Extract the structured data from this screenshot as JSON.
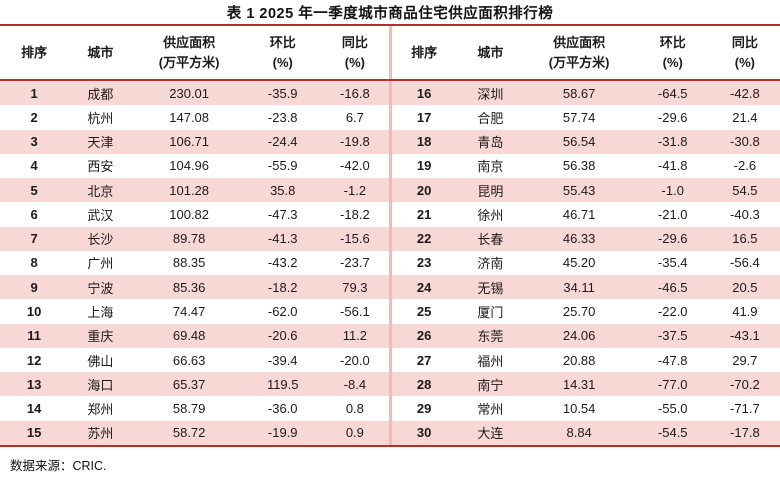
{
  "chart_data": {
    "type": "table",
    "title": "表 1 2025 年一季度城市商品住宅供应面积排行榜",
    "source": "数据来源：CRIC.",
    "columns": {
      "rank": "排序",
      "city": "城市",
      "supply_l1": "供应面积",
      "supply_l2": "(万平方米)",
      "mom_l1": "环比",
      "mom_l2": "(%)",
      "yoy_l1": "同比",
      "yoy_l2": "(%)"
    },
    "left_rows": [
      {
        "rank": "1",
        "city": "成都",
        "supply": "230.01",
        "mom": "-35.9",
        "yoy": "-16.8"
      },
      {
        "rank": "2",
        "city": "杭州",
        "supply": "147.08",
        "mom": "-23.8",
        "yoy": "6.7"
      },
      {
        "rank": "3",
        "city": "天津",
        "supply": "106.71",
        "mom": "-24.4",
        "yoy": "-19.8"
      },
      {
        "rank": "4",
        "city": "西安",
        "supply": "104.96",
        "mom": "-55.9",
        "yoy": "-42.0"
      },
      {
        "rank": "5",
        "city": "北京",
        "supply": "101.28",
        "mom": "35.8",
        "yoy": "-1.2"
      },
      {
        "rank": "6",
        "city": "武汉",
        "supply": "100.82",
        "mom": "-47.3",
        "yoy": "-18.2"
      },
      {
        "rank": "7",
        "city": "长沙",
        "supply": "89.78",
        "mom": "-41.3",
        "yoy": "-15.6"
      },
      {
        "rank": "8",
        "city": "广州",
        "supply": "88.35",
        "mom": "-43.2",
        "yoy": "-23.7"
      },
      {
        "rank": "9",
        "city": "宁波",
        "supply": "85.36",
        "mom": "-18.2",
        "yoy": "79.3"
      },
      {
        "rank": "10",
        "city": "上海",
        "supply": "74.47",
        "mom": "-62.0",
        "yoy": "-56.1"
      },
      {
        "rank": "11",
        "city": "重庆",
        "supply": "69.48",
        "mom": "-20.6",
        "yoy": "11.2"
      },
      {
        "rank": "12",
        "city": "佛山",
        "supply": "66.63",
        "mom": "-39.4",
        "yoy": "-20.0"
      },
      {
        "rank": "13",
        "city": "海口",
        "supply": "65.37",
        "mom": "119.5",
        "yoy": "-8.4"
      },
      {
        "rank": "14",
        "city": "郑州",
        "supply": "58.79",
        "mom": "-36.0",
        "yoy": "0.8"
      },
      {
        "rank": "15",
        "city": "苏州",
        "supply": "58.72",
        "mom": "-19.9",
        "yoy": "0.9"
      }
    ],
    "right_rows": [
      {
        "rank": "16",
        "city": "深圳",
        "supply": "58.67",
        "mom": "-64.5",
        "yoy": "-42.8"
      },
      {
        "rank": "17",
        "city": "合肥",
        "supply": "57.74",
        "mom": "-29.6",
        "yoy": "21.4"
      },
      {
        "rank": "18",
        "city": "青岛",
        "supply": "56.54",
        "mom": "-31.8",
        "yoy": "-30.8"
      },
      {
        "rank": "19",
        "city": "南京",
        "supply": "56.38",
        "mom": "-41.8",
        "yoy": "-2.6"
      },
      {
        "rank": "20",
        "city": "昆明",
        "supply": "55.43",
        "mom": "-1.0",
        "yoy": "54.5"
      },
      {
        "rank": "21",
        "city": "徐州",
        "supply": "46.71",
        "mom": "-21.0",
        "yoy": "-40.3"
      },
      {
        "rank": "22",
        "city": "长春",
        "supply": "46.33",
        "mom": "-29.6",
        "yoy": "16.5"
      },
      {
        "rank": "23",
        "city": "济南",
        "supply": "45.20",
        "mom": "-35.4",
        "yoy": "-56.4"
      },
      {
        "rank": "24",
        "city": "无锡",
        "supply": "34.11",
        "mom": "-46.5",
        "yoy": "20.5"
      },
      {
        "rank": "25",
        "city": "厦门",
        "supply": "25.70",
        "mom": "-22.0",
        "yoy": "41.9"
      },
      {
        "rank": "26",
        "city": "东莞",
        "supply": "24.06",
        "mom": "-37.5",
        "yoy": "-43.1"
      },
      {
        "rank": "27",
        "city": "福州",
        "supply": "20.88",
        "mom": "-47.8",
        "yoy": "29.7"
      },
      {
        "rank": "28",
        "city": "南宁",
        "supply": "14.31",
        "mom": "-77.0",
        "yoy": "-70.2"
      },
      {
        "rank": "29",
        "city": "常州",
        "supply": "10.54",
        "mom": "-55.0",
        "yoy": "-71.7"
      },
      {
        "rank": "30",
        "city": "大连",
        "supply": "8.84",
        "mom": "-54.5",
        "yoy": "-17.8"
      }
    ]
  },
  "colors": {
    "line_red": "#b8302b",
    "stripe_pink": "#f8d8d5",
    "divider_pink": "#f3b9b4",
    "text_dark": "#1b1b1b"
  }
}
